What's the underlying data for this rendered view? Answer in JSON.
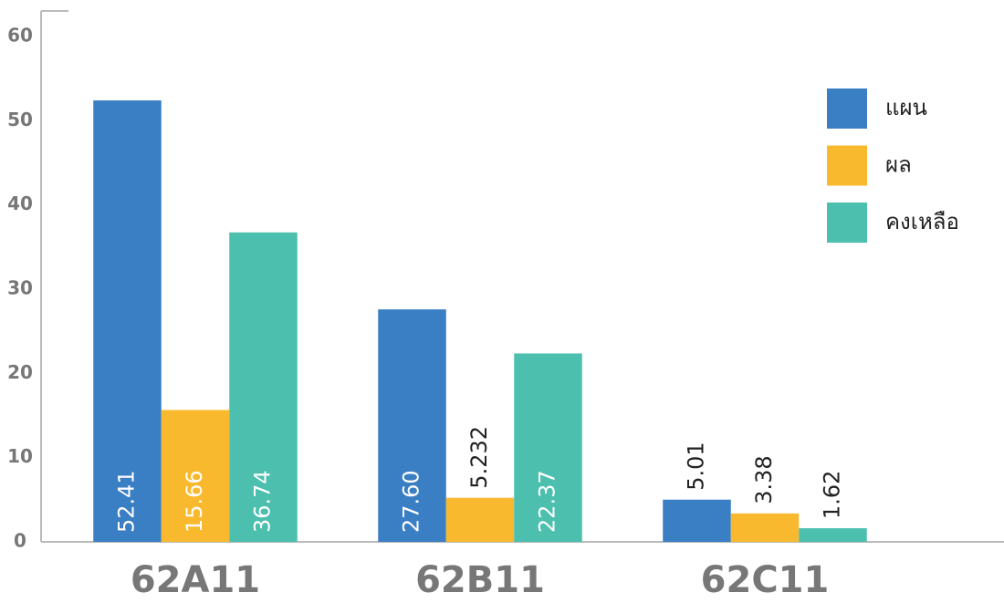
{
  "chart_data": {
    "type": "bar",
    "categories": [
      "62A11",
      "62B11",
      "62C11"
    ],
    "series": [
      {
        "name": "แผน",
        "color": "#3a7ec4",
        "values": [
          52.41,
          27.6,
          5.01
        ],
        "value_labels": [
          "52.41",
          "27.60",
          "5.01"
        ]
      },
      {
        "name": "ผล",
        "color": "#f9b92e",
        "values": [
          15.66,
          5.232,
          3.38
        ],
        "value_labels": [
          "15.66",
          "5.232",
          "3.38"
        ]
      },
      {
        "name": "คงเหลือ",
        "color": "#4cbfae",
        "values": [
          36.74,
          22.37,
          1.62
        ],
        "value_labels": [
          "36.74",
          "22.37",
          "1.62"
        ]
      }
    ],
    "ylim": [
      0,
      60
    ],
    "yticks": [
      0,
      10,
      20,
      30,
      40,
      50,
      60
    ],
    "grid": false,
    "legend": "upper right"
  }
}
